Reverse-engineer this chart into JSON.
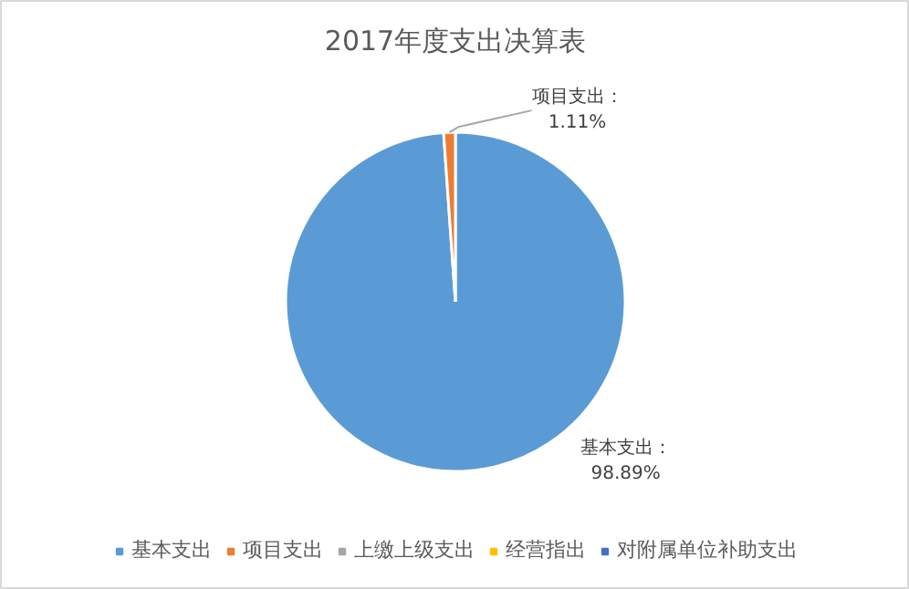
{
  "chart_data": {
    "type": "pie",
    "title": "2017年度支出决算表",
    "categories": [
      "基本支出",
      "项目支出",
      "上缴上级支出",
      "经营指出",
      "对附属单位补助支出"
    ],
    "values": [
      98.89,
      1.11,
      0,
      0,
      0
    ],
    "colors": [
      "#5b9bd5",
      "#ed7d31",
      "#a5a5a5",
      "#ffc000",
      "#4472c4"
    ],
    "value_labels": [
      "基本支出：\n98.89%",
      "项目支出：\n1.11%",
      null,
      null,
      null
    ],
    "legend": "bottom"
  }
}
